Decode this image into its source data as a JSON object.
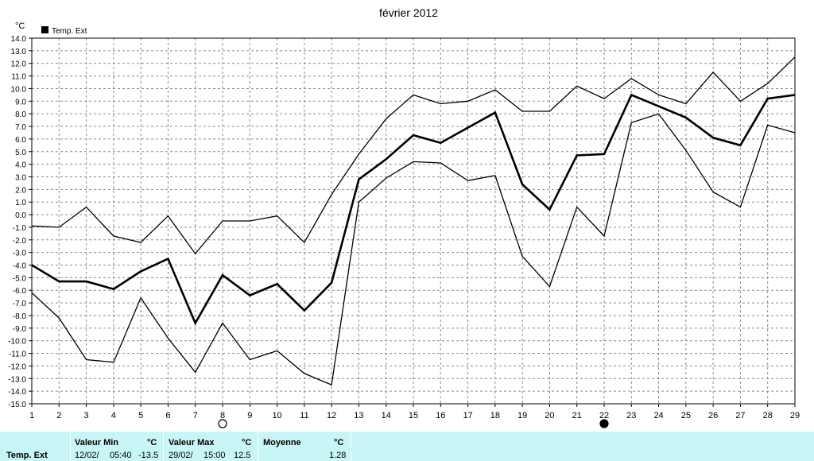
{
  "chart_data": {
    "type": "line",
    "title": "février 2012",
    "ylabel": "°C",
    "legend": {
      "entries": [
        "Temp. Ext"
      ],
      "placement": "top-left"
    },
    "x": [
      1,
      2,
      3,
      4,
      5,
      6,
      7,
      8,
      9,
      10,
      11,
      12,
      13,
      14,
      15,
      16,
      17,
      18,
      19,
      20,
      21,
      22,
      23,
      24,
      25,
      26,
      27,
      28,
      29
    ],
    "xlim": [
      1,
      29
    ],
    "ylim": [
      -15,
      14
    ],
    "grid": true,
    "series": [
      {
        "name": "max",
        "values": [
          -0.9,
          -1.0,
          0.6,
          -1.7,
          -2.2,
          -0.1,
          -3.1,
          -0.5,
          -0.5,
          -0.1,
          -2.2,
          1.6,
          4.8,
          7.6,
          9.5,
          8.8,
          9.0,
          9.9,
          8.2,
          8.2,
          10.2,
          9.2,
          10.8,
          9.5,
          8.8,
          11.3,
          9.0,
          10.4,
          12.5
        ]
      },
      {
        "name": "avg",
        "values": [
          -4.0,
          -5.3,
          -5.3,
          -5.9,
          -4.5,
          -3.5,
          -8.6,
          -4.8,
          -6.4,
          -5.5,
          -7.6,
          -5.4,
          2.8,
          4.4,
          6.3,
          5.7,
          6.9,
          8.1,
          2.4,
          0.4,
          4.7,
          4.8,
          9.5,
          8.6,
          7.7,
          6.1,
          5.5,
          9.2,
          9.5
        ]
      },
      {
        "name": "min",
        "values": [
          -6.2,
          -8.2,
          -11.5,
          -11.7,
          -6.6,
          -9.8,
          -12.5,
          -8.6,
          -11.5,
          -10.8,
          -12.6,
          -13.5,
          1.0,
          2.9,
          4.2,
          4.1,
          2.7,
          3.1,
          -3.3,
          -5.7,
          0.6,
          -1.7,
          7.3,
          8.0,
          5.1,
          1.8,
          0.6,
          7.1,
          6.5
        ]
      }
    ],
    "moon_markers": [
      {
        "x": 8,
        "phase": "full"
      },
      {
        "x": 22,
        "phase": "new"
      }
    ]
  },
  "footer": {
    "row_label": "Temp. Ext",
    "min_label": "Valeur Min",
    "min_unit": "°C",
    "min_date": "12/02/",
    "min_time": "05:40",
    "min_value": "-13.5",
    "max_label": "Valeur Max",
    "max_unit": "°C",
    "max_date": "29/02/",
    "max_time": "15:00",
    "max_value": "12.5",
    "avg_label": "Moyenne",
    "avg_unit": "°C",
    "avg_value": "1.28"
  }
}
